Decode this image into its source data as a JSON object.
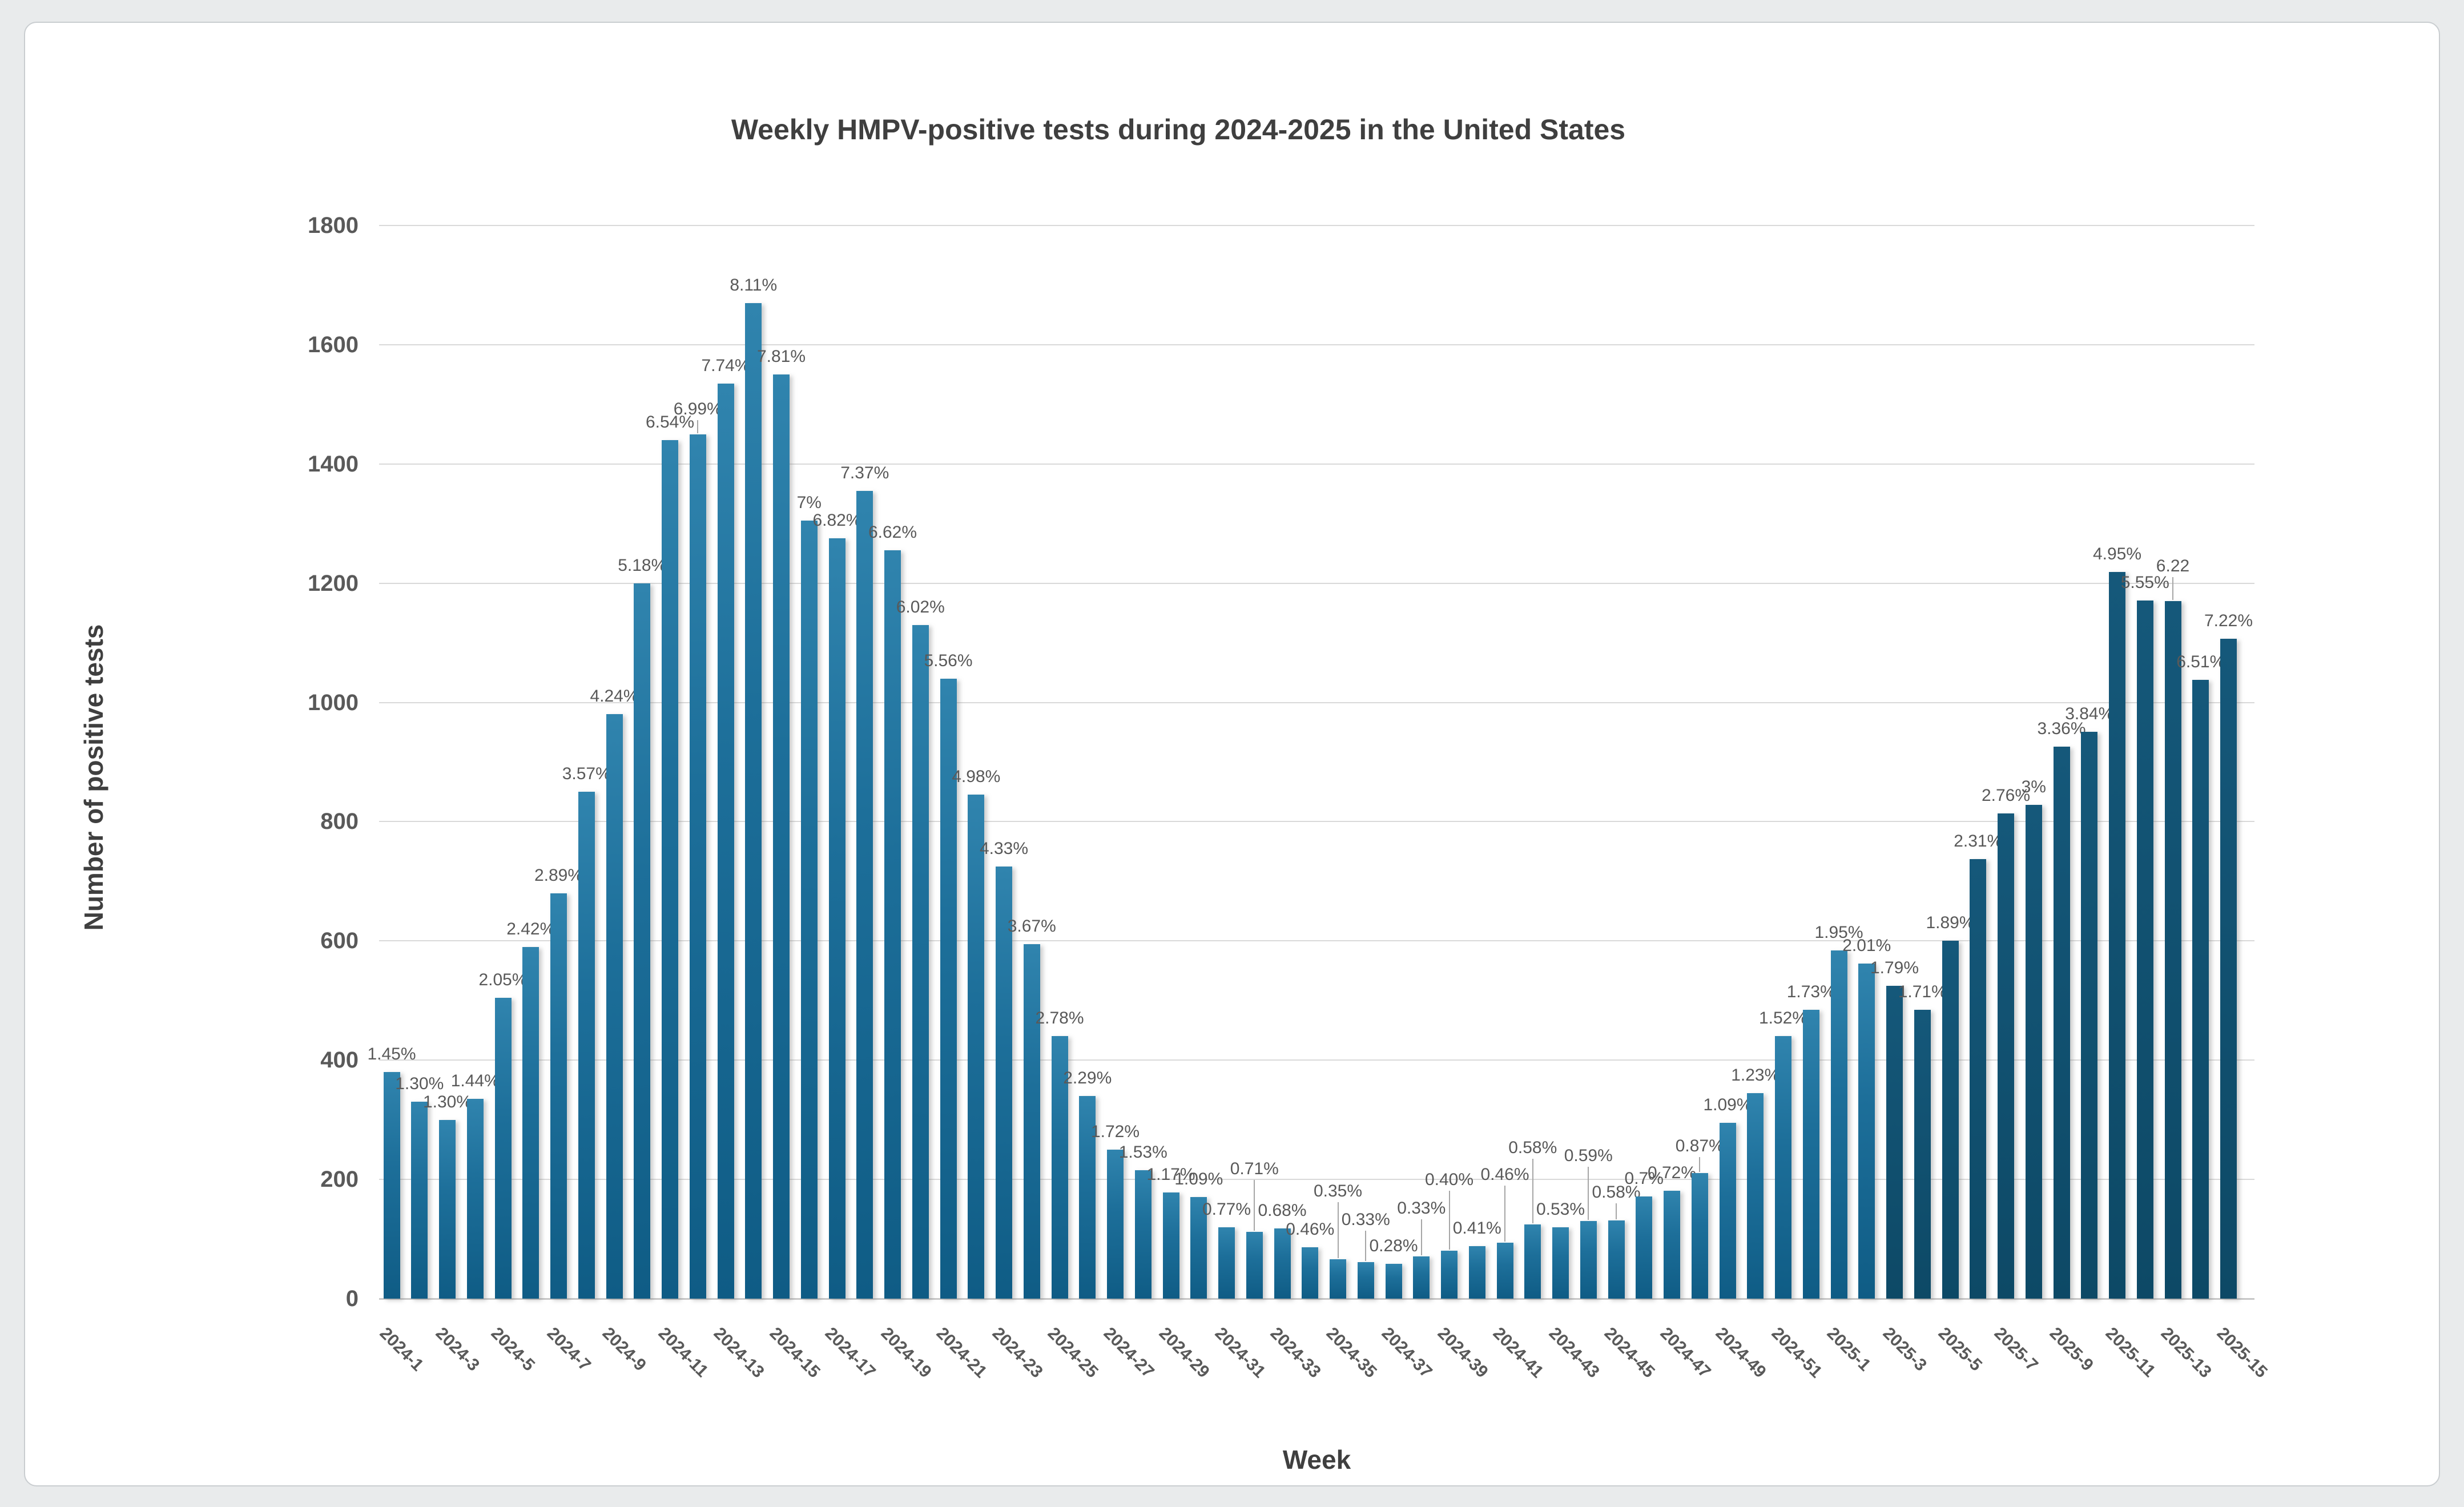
{
  "page": {
    "background_color": "#e9ebec",
    "card_color": "#ffffff",
    "card_border_color": "#c9cdd0"
  },
  "chart_data": {
    "type": "bar",
    "title": "Weekly HMPV-positive tests during 2024-2025 in the United States",
    "xlabel": "Week",
    "ylabel": "Number of positive tests",
    "ylim": [
      0,
      1800
    ],
    "y_ticks": [
      0,
      200,
      400,
      600,
      800,
      1000,
      1200,
      1400,
      1600,
      1800
    ],
    "grid": true,
    "legend": false,
    "x_tick_step": 2,
    "categories": [
      "2024-1",
      "2024-2",
      "2024-3",
      "2024-4",
      "2024-5",
      "2024-6",
      "2024-7",
      "2024-8",
      "2024-9",
      "2024-10",
      "2024-11",
      "2024-12",
      "2024-13",
      "2024-14",
      "2024-15",
      "2024-16",
      "2024-17",
      "2024-18",
      "2024-19",
      "2024-20",
      "2024-21",
      "2024-22",
      "2024-23",
      "2024-24",
      "2024-25",
      "2024-26",
      "2024-27",
      "2024-28",
      "2024-29",
      "2024-30",
      "2024-31",
      "2024-32",
      "2024-33",
      "2024-34",
      "2024-35",
      "2024-36",
      "2024-37",
      "2024-38",
      "2024-39",
      "2024-40",
      "2024-41",
      "2024-42",
      "2024-43",
      "2024-44",
      "2024-45",
      "2024-46",
      "2024-47",
      "2024-48",
      "2024-49",
      "2024-50",
      "2024-51",
      "2024-52",
      "2025-1",
      "2025-2",
      "2025-3",
      "2025-4",
      "2025-5",
      "2025-6",
      "2025-7",
      "2025-8",
      "2025-9",
      "2025-10",
      "2025-11",
      "2025-12",
      "2025-13",
      "2025-14",
      "2025-15"
    ],
    "series": [
      {
        "name": "Number of positive tests",
        "values": [
          380,
          330,
          300,
          335,
          505,
          590,
          680,
          850,
          980,
          1200,
          1440,
          1450,
          1535,
          1670,
          1550,
          1305,
          1275,
          1355,
          1255,
          1130,
          1040,
          845,
          725,
          595,
          440,
          340,
          250,
          215,
          178,
          170,
          120,
          112,
          118,
          86,
          66,
          61,
          58,
          71,
          80,
          88,
          94,
          124,
          120,
          130,
          131,
          171,
          181,
          211,
          295,
          345,
          440,
          484,
          584,
          562,
          525,
          484,
          600,
          737,
          814,
          828,
          926,
          951,
          1219,
          1171,
          1170,
          1038,
          1107
        ]
      }
    ],
    "point_labels": [
      "1.45%",
      "1.30%",
      "1.30%",
      "1.44%",
      "2.05%",
      "2.42%",
      "2.89%",
      "3.57%",
      "4.24%",
      "5.18%",
      "6.54%",
      "6.99%",
      "7.74%",
      "8.11%",
      "7.81%",
      "7%",
      "6.82%",
      "7.37%",
      "6.62%",
      "6.02%",
      "5.56%",
      "4.98%",
      "4.33%",
      "3.67%",
      "2.78%",
      "2.29%",
      "1.72%",
      "1.53%",
      "1.17%",
      "1.09%",
      "0.77%",
      "0.71%",
      "0.68%",
      "0.46%",
      "0.35%",
      "0.33%",
      "0.28%",
      "0.33%",
      "0.40%",
      "0.41%",
      "0.46%",
      "0.58%",
      "0.53%",
      "0.59%",
      "0.58%",
      "0.7%",
      "0.72%",
      "0.87%",
      "1.09%",
      "1.23%",
      "1.52%",
      "1.73%",
      "1.95%",
      "2.01%",
      "1.79%",
      "1.71%",
      "1.89%",
      "2.31%",
      "2.76%",
      "3%",
      "3.36%",
      "3.84%",
      "4.95%",
      "5.55%",
      "6.22",
      "6.51%",
      "7.22%"
    ],
    "point_label_meaning": "percent of tests positive",
    "bar_color_2024_top": "#3084ae",
    "bar_color_2024_bottom": "#0f5c85",
    "bar_color_recent_top": "#15587a",
    "bar_color_recent_bottom": "#0d4966",
    "recent_dark_start_category": "2025-3",
    "gridline_color": "#d9d9d9",
    "label_text_color": "#595959",
    "title_text_color": "#3f3f3f",
    "leader_line_color": "#a6a6a6"
  }
}
